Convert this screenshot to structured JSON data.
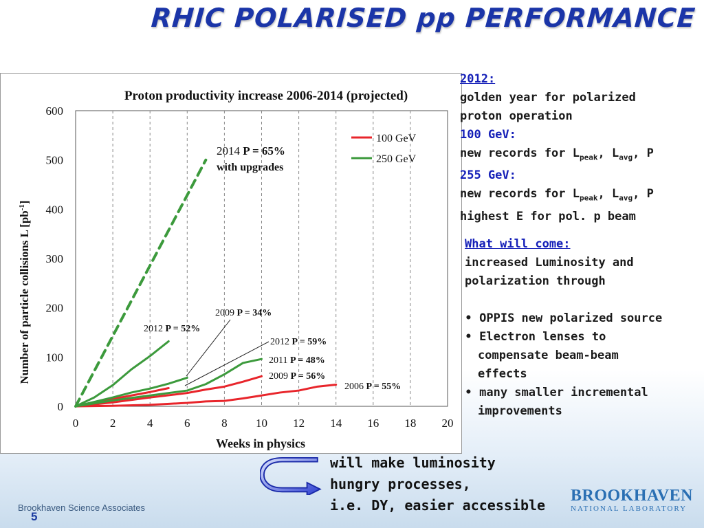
{
  "slide": {
    "title": "RHIC POLARISED pp PERFORMANCE",
    "footer_org": "Brookhaven Science Associates",
    "page_number": "5",
    "logo_name": "BROOKHAVEN",
    "logo_sub": "NATIONAL LABORATORY"
  },
  "notes": {
    "year_heading": "2012:",
    "year_text_1": "golden year for polarized",
    "year_text_2": "proton operation",
    "h100": "100 GeV:",
    "rec100_prefix": "new records for L",
    "rec100_sub1": "peak",
    "rec100_mid": ", L",
    "rec100_sub2": "avg",
    "rec100_suffix": ", P",
    "h255": "255 GeV:",
    "rec255_prefix": "new records for L",
    "rec255_sub1": "peak",
    "rec255_mid": ", L",
    "rec255_sub2": "avg",
    "rec255_suffix": ", P",
    "rec255_line2": "highest E for pol. p beam",
    "future_heading": "What will come:",
    "future_text_1": "increased Luminosity and",
    "future_text_2": "polarization through",
    "bullets": [
      {
        "mark": "•",
        "line1": "OPPIS new polarized source",
        "line2": ""
      },
      {
        "mark": "•",
        "line1": "Electron lenses to",
        "line2": "compensate beam-beam",
        "line3": "effects"
      },
      {
        "mark": "•",
        "line1": "many smaller incremental",
        "line2": "improvements"
      }
    ],
    "conclusion_1": "will make luminosity",
    "conclusion_2": "hungry processes,",
    "conclusion_3": "i.e. DY, easier accessible"
  },
  "chart_data": {
    "type": "line",
    "title": "Proton productivity increase 2006-2014 (projected)",
    "xlabel": "Weeks in physics",
    "ylabel_main": "Number of particle collisions L [pb",
    "ylabel_sup": "-1",
    "ylabel_end": "]",
    "xlim": [
      0,
      20
    ],
    "ylim": [
      0,
      600
    ],
    "xticks": [
      "0",
      "2",
      "4",
      "6",
      "8",
      "10",
      "12",
      "14",
      "16",
      "18",
      "20"
    ],
    "yticks": [
      "0",
      "100",
      "200",
      "300",
      "400",
      "500",
      "600"
    ],
    "grid": "vertical-dashed",
    "legend": [
      {
        "name": "100 GeV",
        "color": "#e8252b"
      },
      {
        "name": "250 GeV",
        "color": "#3c9a3c"
      }
    ],
    "series": [
      {
        "group": "100 GeV",
        "year": "2006",
        "color": "#e8252b",
        "dash": false,
        "points": [
          [
            0,
            0
          ],
          [
            2,
            1
          ],
          [
            4,
            3
          ],
          [
            6,
            7
          ],
          [
            7,
            10
          ],
          [
            8,
            11
          ],
          [
            9,
            16
          ],
          [
            10,
            22
          ],
          [
            11,
            28
          ],
          [
            12,
            32
          ],
          [
            13,
            40
          ],
          [
            14,
            44
          ]
        ]
      },
      {
        "group": "100 GeV",
        "year": "2009",
        "color": "#e8252b",
        "dash": false,
        "points": [
          [
            0,
            0
          ],
          [
            2,
            8
          ],
          [
            4,
            18
          ],
          [
            6,
            27
          ],
          [
            7,
            34
          ],
          [
            8,
            40
          ],
          [
            9,
            50
          ],
          [
            10,
            61
          ]
        ]
      },
      {
        "group": "100 GeV",
        "year": "2012",
        "color": "#e8252b",
        "dash": false,
        "points": [
          [
            0,
            0
          ],
          [
            1,
            7
          ],
          [
            2,
            15
          ],
          [
            3,
            22
          ],
          [
            4,
            29
          ],
          [
            4.5,
            33
          ],
          [
            5,
            37
          ]
        ]
      },
      {
        "group": "250 GeV",
        "year": "2009",
        "color": "#3c9a3c",
        "dash": false,
        "points": [
          [
            0,
            0
          ],
          [
            1,
            9
          ],
          [
            2,
            18
          ],
          [
            3,
            28
          ],
          [
            4,
            36
          ],
          [
            5,
            46
          ],
          [
            6,
            58
          ]
        ]
      },
      {
        "group": "250 GeV",
        "year": "2011",
        "color": "#3c9a3c",
        "dash": false,
        "points": [
          [
            0,
            0
          ],
          [
            2,
            12
          ],
          [
            4,
            22
          ],
          [
            6,
            32
          ],
          [
            7,
            45
          ],
          [
            8,
            65
          ],
          [
            9,
            88
          ],
          [
            10,
            96
          ]
        ]
      },
      {
        "group": "250 GeV",
        "year": "2012",
        "color": "#3c9a3c",
        "dash": false,
        "points": [
          [
            0,
            0
          ],
          [
            1,
            18
          ],
          [
            2,
            43
          ],
          [
            3,
            75
          ],
          [
            4,
            102
          ],
          [
            5,
            132
          ]
        ]
      },
      {
        "group": "250 GeV",
        "year": "2014",
        "color": "#3c9a3c",
        "dash": true,
        "points": [
          [
            0,
            0
          ],
          [
            7,
            500
          ]
        ]
      }
    ],
    "annotations": [
      {
        "id": "ann-2014",
        "line1": "2014 ",
        "bold1": "P = 65%",
        "line2": "with upgrades"
      },
      {
        "id": "ann-2009a",
        "text": "2009  ",
        "bold": "P = 34%"
      },
      {
        "id": "ann-2012a",
        "text": "2012 ",
        "bold": "P = 52%"
      },
      {
        "id": "ann-2012b",
        "text": "2012  ",
        "bold": "P = 59%"
      },
      {
        "id": "ann-2011",
        "text": "2011 ",
        "bold": "P = 48%"
      },
      {
        "id": "ann-2009b",
        "text": "2009  ",
        "bold": "P = 56%"
      },
      {
        "id": "ann-2006",
        "text": "2006  ",
        "bold": "P = 55%"
      }
    ]
  }
}
